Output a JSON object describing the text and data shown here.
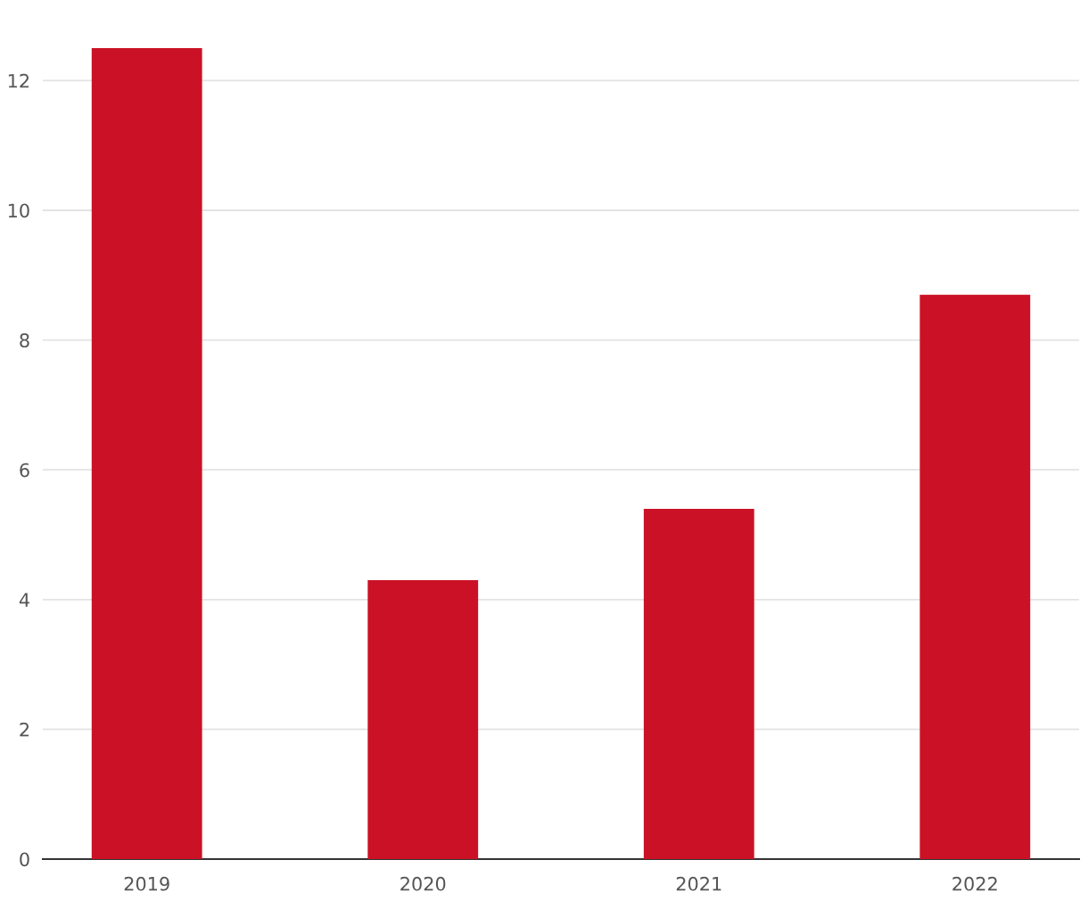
{
  "chart_data": {
    "type": "bar",
    "categories": [
      "2019",
      "2020",
      "2021",
      "2022"
    ],
    "values": [
      12.5,
      4.3,
      5.4,
      8.7
    ],
    "color": "#cb1126",
    "ylim": [
      0,
      12.5
    ],
    "yticks": [
      0,
      2,
      4,
      6,
      8,
      10,
      12
    ],
    "grid": "y",
    "legend": false
  }
}
